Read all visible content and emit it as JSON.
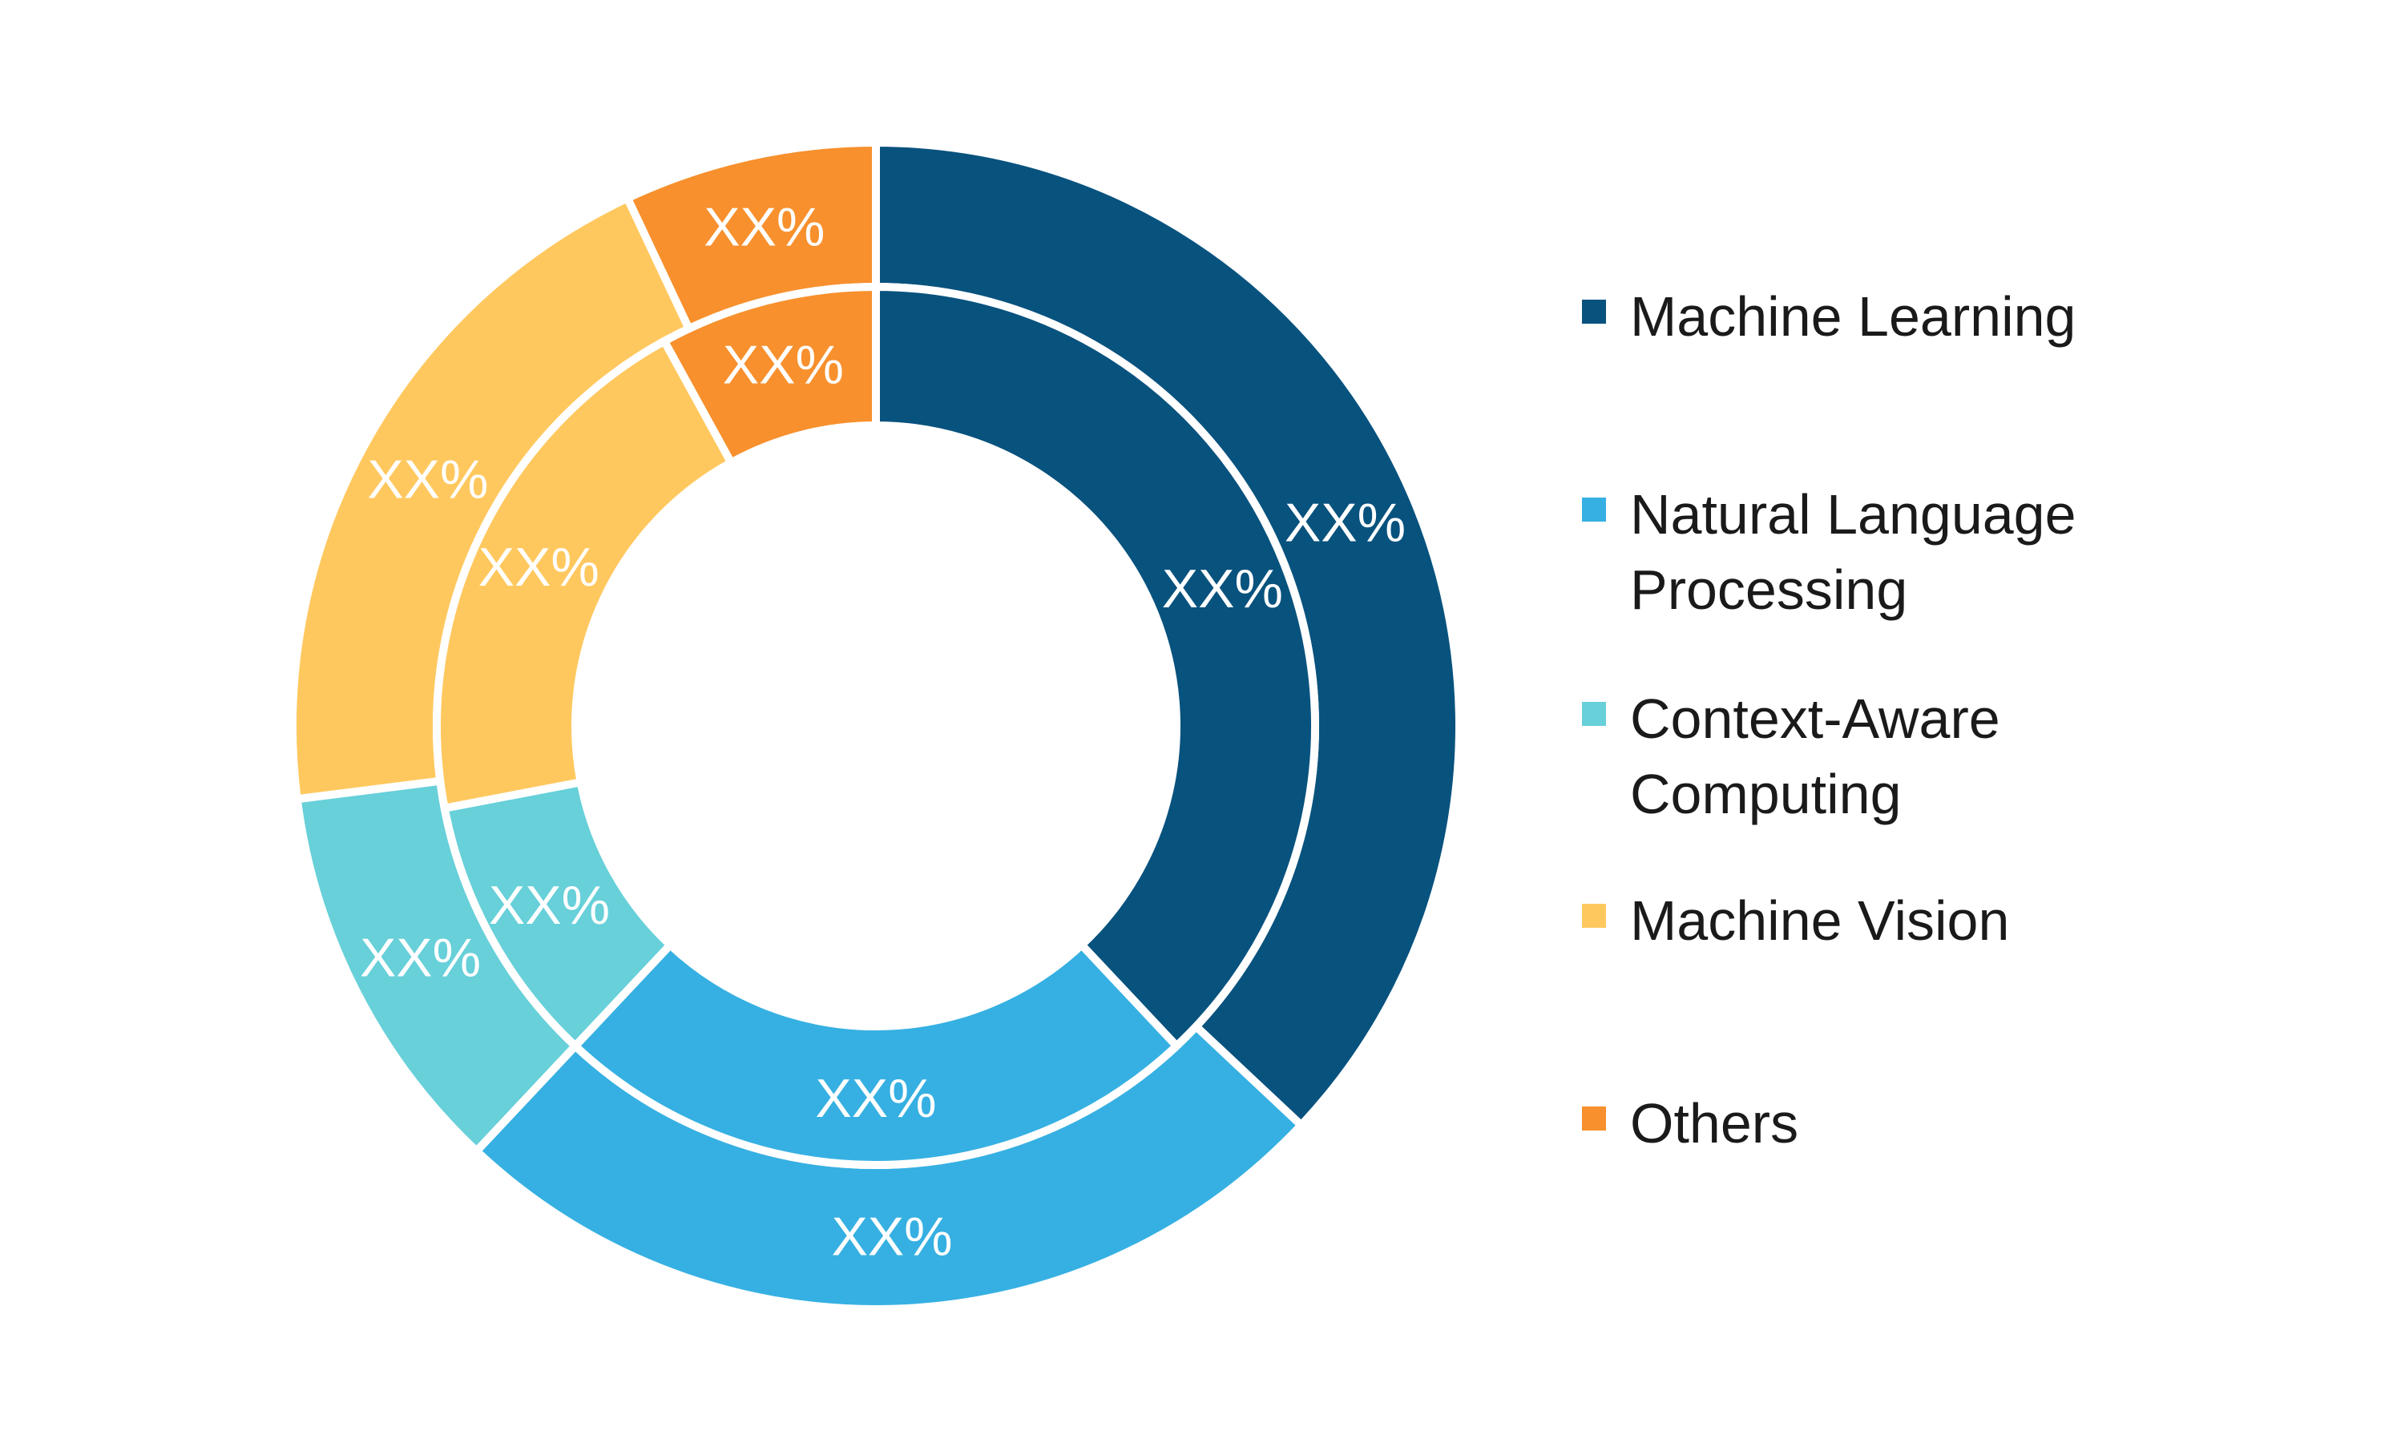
{
  "chart_data": {
    "type": "donut",
    "rings": [
      {
        "name": "",
        "values": [
          37,
          25,
          11,
          20,
          7
        ],
        "labels": [
          "XX%",
          "XX%",
          "XX%",
          "XX%",
          "XX%"
        ]
      },
      {
        "name": "",
        "values": [
          38,
          24,
          10,
          20,
          8
        ],
        "labels": [
          "XX%",
          "XX%",
          "XX%",
          "XX%",
          "XX%"
        ]
      }
    ],
    "categories": [
      "Machine Learning",
      "Natural Language\nProcessing",
      "Context-Aware\nComputing",
      "Machine Vision",
      "Others"
    ],
    "colors": [
      "#08527e",
      "#36b0e2",
      "#67d0d9",
      "#ffc85f",
      "#f7902d"
    ],
    "legend_placement": "right"
  }
}
